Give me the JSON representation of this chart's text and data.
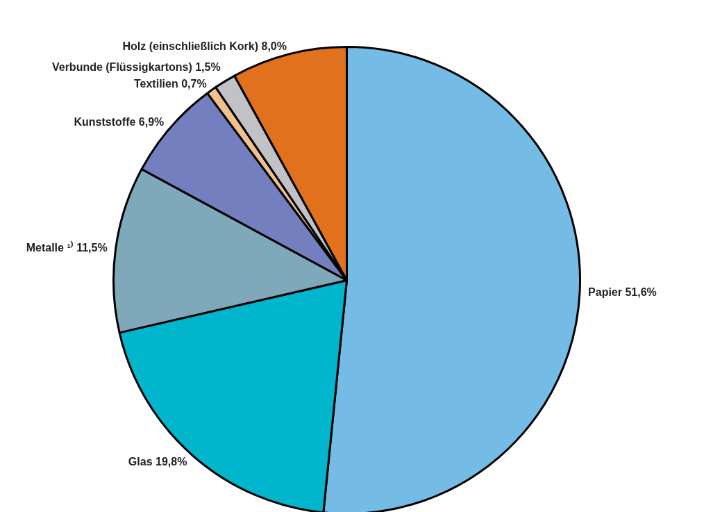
{
  "chart_data": {
    "type": "pie",
    "categories": [
      "Papier",
      "Glas",
      "Metalle ¹⁾",
      "Kunststoffe",
      "Textilien",
      "Verbunde (Flüssigkartons)",
      "Holz (einschließlich Kork)"
    ],
    "values": [
      51.6,
      19.8,
      11.5,
      6.9,
      0.7,
      1.5,
      8.0
    ],
    "value_labels": [
      "51,6%",
      "19,8%",
      "11,5%",
      "6,9%",
      "0,7%",
      "1,5%",
      "8,0%"
    ],
    "colors": [
      "#74bce6",
      "#00b5cc",
      "#7fa8bb",
      "#737fbf",
      "#f2c08f",
      "#c0c2c6",
      "#e2711d"
    ]
  }
}
